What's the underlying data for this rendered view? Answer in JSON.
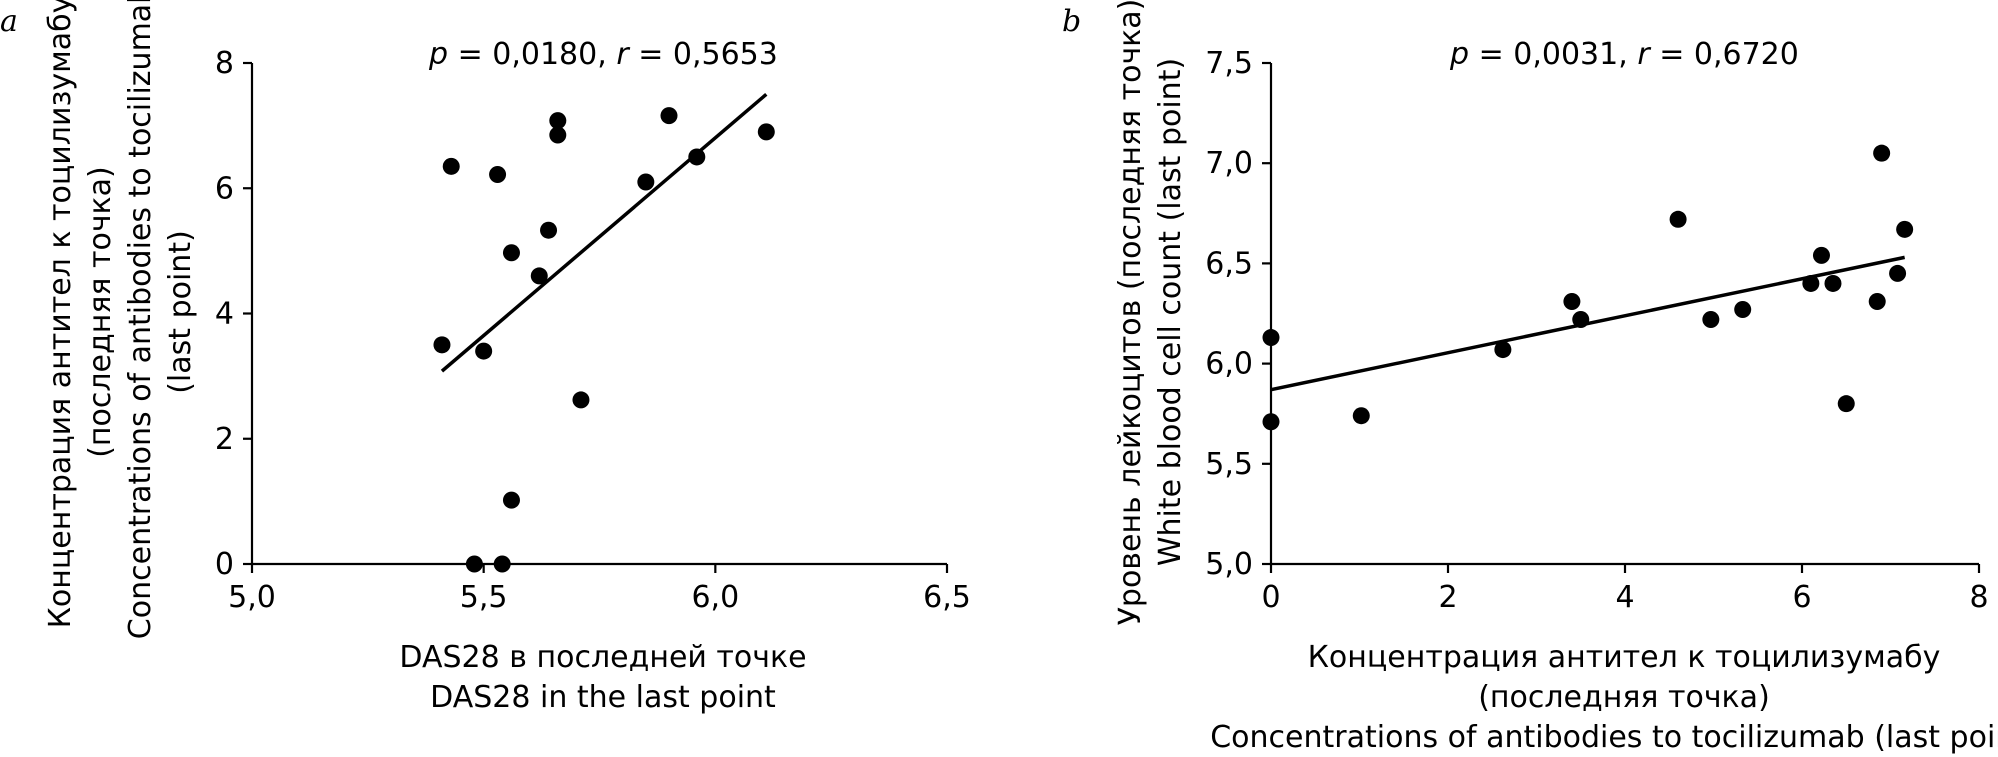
{
  "chart_data": [
    {
      "type": "scatter",
      "panel_label": "a",
      "stats": {
        "p_symbol": "p",
        "p_rest": " = 0,0180, ",
        "r_symbol": "r",
        "r_rest": " = 0,5653"
      },
      "xlabel": [
        "DAS28 в последней точке",
        "DAS28 in the last point"
      ],
      "ylabel": [
        "Концентрация антител к тоцилизумабу",
        "(последняя точка)",
        "Concentrations of antibodies to tocilizumab",
        "(last point)"
      ],
      "xlim": [
        5.0,
        6.5
      ],
      "ylim": [
        0,
        8
      ],
      "x_ticks": [
        5.0,
        5.5,
        6.0,
        6.5
      ],
      "x_tick_labels": [
        "5,0",
        "5,5",
        "6,0",
        "6,5"
      ],
      "y_ticks": [
        0,
        2,
        4,
        6,
        8
      ],
      "y_tick_labels": [
        "0",
        "2",
        "4",
        "6",
        "8"
      ],
      "points": [
        {
          "x": 5.41,
          "y": 3.5
        },
        {
          "x": 5.43,
          "y": 6.35
        },
        {
          "x": 5.48,
          "y": 0.0
        },
        {
          "x": 5.5,
          "y": 3.4
        },
        {
          "x": 5.53,
          "y": 6.22
        },
        {
          "x": 5.54,
          "y": 0.0
        },
        {
          "x": 5.56,
          "y": 4.97
        },
        {
          "x": 5.56,
          "y": 1.02
        },
        {
          "x": 5.62,
          "y": 4.6
        },
        {
          "x": 5.64,
          "y": 5.33
        },
        {
          "x": 5.66,
          "y": 6.85
        },
        {
          "x": 5.66,
          "y": 7.08
        },
        {
          "x": 5.71,
          "y": 2.62
        },
        {
          "x": 5.85,
          "y": 6.1
        },
        {
          "x": 5.9,
          "y": 7.16
        },
        {
          "x": 5.96,
          "y": 6.5
        },
        {
          "x": 6.11,
          "y": 6.9
        }
      ],
      "trendline": {
        "x1": 5.41,
        "y1": 3.08,
        "x2": 6.11,
        "y2": 7.5
      },
      "grid": false
    },
    {
      "type": "scatter",
      "panel_label": "b",
      "stats": {
        "p_symbol": "p",
        "p_rest": " = 0,0031, ",
        "r_symbol": "r",
        "r_rest": " = 0,6720"
      },
      "xlabel": [
        "Концентрация антител к тоцилизумабу",
        "(последняя точка)",
        "Concentrations of antibodies to tocilizumab (last point)"
      ],
      "ylabel": [
        "Уровень лейкоцитов (последняя точка)",
        "White blood cell count (last point)"
      ],
      "xlim": [
        0,
        8
      ],
      "ylim": [
        5.0,
        7.5
      ],
      "x_ticks": [
        0,
        2,
        4,
        6,
        8
      ],
      "x_tick_labels": [
        "0",
        "2",
        "4",
        "6",
        "8"
      ],
      "y_ticks": [
        5.0,
        5.5,
        6.0,
        6.5,
        7.0,
        7.5
      ],
      "y_tick_labels": [
        "5,0",
        "5,5",
        "6,0",
        "6,5",
        "7,0",
        "7,5"
      ],
      "points": [
        {
          "x": 0.0,
          "y": 6.13
        },
        {
          "x": 0.0,
          "y": 5.71
        },
        {
          "x": 1.02,
          "y": 5.74
        },
        {
          "x": 2.62,
          "y": 6.07
        },
        {
          "x": 3.4,
          "y": 6.31
        },
        {
          "x": 3.5,
          "y": 6.22
        },
        {
          "x": 4.6,
          "y": 6.72
        },
        {
          "x": 4.97,
          "y": 6.22
        },
        {
          "x": 5.33,
          "y": 6.27
        },
        {
          "x": 6.1,
          "y": 6.4
        },
        {
          "x": 6.22,
          "y": 6.54
        },
        {
          "x": 6.35,
          "y": 6.4
        },
        {
          "x": 6.5,
          "y": 5.8
        },
        {
          "x": 6.85,
          "y": 6.31
        },
        {
          "x": 6.9,
          "y": 7.05
        },
        {
          "x": 7.08,
          "y": 6.45
        },
        {
          "x": 7.16,
          "y": 6.67
        }
      ],
      "trendline": {
        "x1": 0.0,
        "y1": 5.87,
        "x2": 7.16,
        "y2": 6.53
      },
      "grid": false
    }
  ]
}
